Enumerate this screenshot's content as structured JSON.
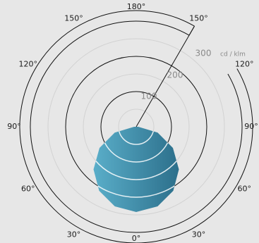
{
  "chart_data": {
    "type": "polar-luminous-intensity",
    "radial_max": 300,
    "rings": [
      {
        "value": 100,
        "label": "100"
      },
      {
        "value": 200,
        "label": "200"
      },
      {
        "value": 300,
        "label": "300"
      }
    ],
    "unit": "cd / klm",
    "angle_labels": [
      {
        "angle": 180,
        "side": "top",
        "text": "180°"
      },
      {
        "angle": 150,
        "side": "left",
        "text": "150°"
      },
      {
        "angle": 150,
        "side": "right",
        "text": "150°"
      },
      {
        "angle": 120,
        "side": "left",
        "text": "120°"
      },
      {
        "angle": 120,
        "side": "right",
        "text": "120°"
      },
      {
        "angle": 90,
        "side": "left",
        "text": "90°"
      },
      {
        "angle": 90,
        "side": "right",
        "text": "90°"
      },
      {
        "angle": 60,
        "side": "left",
        "text": "60°"
      },
      {
        "angle": 60,
        "side": "right",
        "text": "60°"
      },
      {
        "angle": 30,
        "side": "left",
        "text": "30°"
      },
      {
        "angle": 30,
        "side": "right",
        "text": "30°"
      },
      {
        "angle": 0,
        "side": "bottom",
        "text": "0°"
      }
    ],
    "series": [
      {
        "name": "",
        "color": "#3f8eae",
        "gamma_deg": [
          0,
          15,
          30,
          45,
          60,
          75,
          90,
          105
        ],
        "intensity": [
          242,
          234,
          210,
          171,
          120,
          63,
          6,
          0
        ]
      }
    ],
    "colors": {
      "background": "#e7e7e7",
      "ring_outer": "#111111",
      "ring_inner": "#d2d2d2",
      "text_value": "#8a8a8a",
      "curve_light": "#5aaec9",
      "curve_dark": "#2c6f8b"
    }
  }
}
